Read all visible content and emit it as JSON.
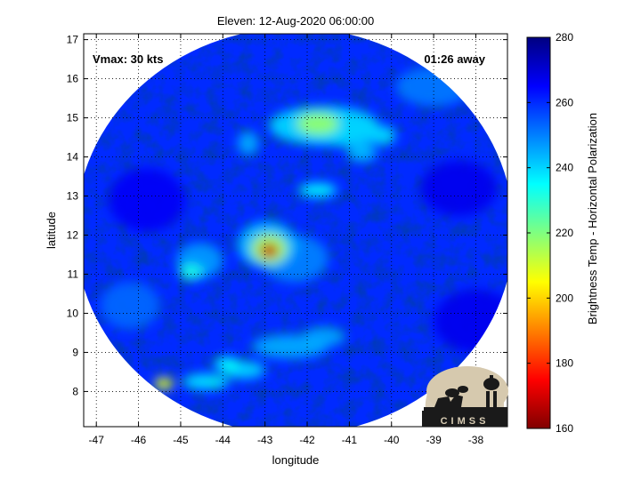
{
  "chart_data": {
    "type": "heatmap",
    "title": "Eleven: 12-Aug-2020 06:00:00",
    "xlabel": "longitude",
    "ylabel": "latitude",
    "xlim": [
      -47.3,
      -37.25
    ],
    "ylim": [
      7.1,
      17.15
    ],
    "x_ticks": [
      -47,
      -46,
      -45,
      -44,
      -43,
      -42,
      -41,
      -40,
      -39,
      -38
    ],
    "y_ticks": [
      8,
      9,
      10,
      11,
      12,
      13,
      14,
      15,
      16,
      17
    ],
    "grid": true,
    "annotations": {
      "vmax": "Vmax: 30 kts",
      "time_away": "01:26 away"
    },
    "colorbar": {
      "label": "Brightness Temp - Horizontal Polarization",
      "range": [
        160,
        280
      ],
      "ticks": [
        160,
        180,
        200,
        220,
        240,
        260,
        280
      ],
      "colormap": "jet"
    },
    "swath": {
      "center_lon": -42.3,
      "center_lat": 12.1,
      "radius_deg": 5.2
    },
    "background_value": 260,
    "features": [
      {
        "lon": -42.9,
        "lat": 11.6,
        "sx": 0.22,
        "sy": 0.18,
        "value": 168
      },
      {
        "lon": -42.9,
        "lat": 11.65,
        "sx": 0.42,
        "sy": 0.38,
        "value": 215
      },
      {
        "lon": -42.95,
        "lat": 11.75,
        "sx": 0.7,
        "sy": 0.6,
        "value": 243
      },
      {
        "lon": -41.75,
        "lat": 14.85,
        "sx": 0.5,
        "sy": 0.28,
        "value": 218
      },
      {
        "lon": -41.6,
        "lat": 14.8,
        "sx": 1.3,
        "sy": 0.5,
        "value": 240
      },
      {
        "lon": -41.0,
        "lat": 14.6,
        "sx": 0.8,
        "sy": 0.35,
        "value": 243
      },
      {
        "lon": -40.2,
        "lat": 14.55,
        "sx": 0.3,
        "sy": 0.25,
        "value": 240
      },
      {
        "lon": -40.7,
        "lat": 14.1,
        "sx": 0.35,
        "sy": 0.22,
        "value": 243
      },
      {
        "lon": -41.75,
        "lat": 13.15,
        "sx": 0.45,
        "sy": 0.18,
        "value": 236
      },
      {
        "lon": -43.4,
        "lat": 14.35,
        "sx": 0.25,
        "sy": 0.3,
        "value": 245
      },
      {
        "lon": -44.75,
        "lat": 11.05,
        "sx": 0.28,
        "sy": 0.2,
        "value": 232
      },
      {
        "lon": -44.55,
        "lat": 11.35,
        "sx": 0.55,
        "sy": 0.45,
        "value": 247
      },
      {
        "lon": -42.3,
        "lat": 11.4,
        "sx": 0.8,
        "sy": 0.6,
        "value": 250
      },
      {
        "lon": -45.4,
        "lat": 8.2,
        "sx": 0.22,
        "sy": 0.16,
        "value": 208
      },
      {
        "lon": -44.4,
        "lat": 8.25,
        "sx": 0.55,
        "sy": 0.2,
        "value": 238
      },
      {
        "lon": -43.5,
        "lat": 8.55,
        "sx": 0.5,
        "sy": 0.22,
        "value": 240
      },
      {
        "lon": -43.9,
        "lat": 8.7,
        "sx": 0.3,
        "sy": 0.18,
        "value": 235
      },
      {
        "lon": -42.4,
        "lat": 9.15,
        "sx": 0.9,
        "sy": 0.3,
        "value": 245
      },
      {
        "lon": -41.6,
        "lat": 9.4,
        "sx": 0.5,
        "sy": 0.25,
        "value": 246
      },
      {
        "lon": -39.0,
        "lat": 15.8,
        "sx": 0.9,
        "sy": 0.5,
        "value": 251
      },
      {
        "lon": -45.8,
        "lat": 12.9,
        "sx": 0.9,
        "sy": 0.8,
        "value": 266
      },
      {
        "lon": -38.4,
        "lat": 13.2,
        "sx": 0.9,
        "sy": 0.7,
        "value": 267
      },
      {
        "lon": -38.0,
        "lat": 9.8,
        "sx": 1.0,
        "sy": 0.8,
        "value": 267
      },
      {
        "lon": -46.2,
        "lat": 10.2,
        "sx": 0.7,
        "sy": 0.6,
        "value": 253
      }
    ]
  },
  "logo": {
    "name": "cimss-logo",
    "text": "CIMSS"
  }
}
